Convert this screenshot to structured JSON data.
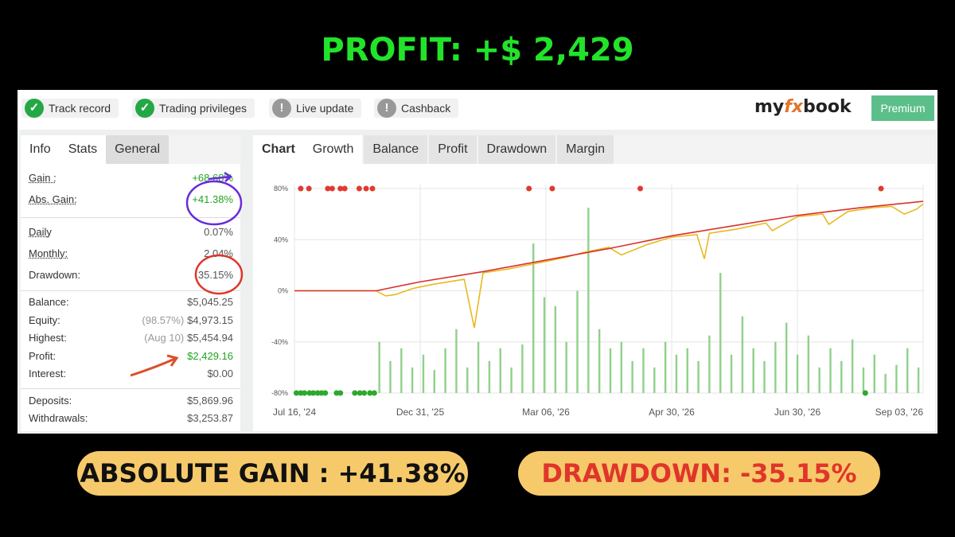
{
  "headline": "PROFIT: +$ 2,429",
  "status_badges": [
    "Track record",
    "Trading privileges",
    "Live update",
    "Cashback"
  ],
  "brand": {
    "prefix": "my",
    "accent": "fx",
    "suffix": "book"
  },
  "premium_button": "Premium",
  "stats_tabs": [
    "Info",
    "Stats",
    "General"
  ],
  "stats": [
    [
      {
        "label": "Gain :",
        "value": "+68.68%",
        "color": "#22a322"
      },
      {
        "label": "Abs. Gain:",
        "value": "+41.38%",
        "color": "#22a322"
      }
    ],
    [
      {
        "label": "Daily",
        "value": "0.07%"
      },
      {
        "label": "Monthly:",
        "value": "2.04%"
      },
      {
        "label": "Drawdown:",
        "value": "35.15%"
      }
    ],
    [
      {
        "label": "Balance:",
        "value": "$5,045.25"
      },
      {
        "label": "Equity:",
        "note": "(98.57%)",
        "value": "$4,973.15"
      },
      {
        "label": "Highest:",
        "note": "(Aug 10)",
        "value": "$5,454.94"
      },
      {
        "label": "Profit:",
        "value": "$2,429.16",
        "color": "#22a322"
      },
      {
        "label": "Interest:",
        "value": "$0.00"
      }
    ],
    [
      {
        "label": "Deposits:",
        "value": "$5,869.96"
      },
      {
        "label": "Withdrawals:",
        "value": "$3,253.87"
      }
    ]
  ],
  "chart_tabs": [
    "Chart",
    "Growth",
    "Balance",
    "Profit",
    "Drawdown",
    "Margin"
  ],
  "chart_data": {
    "type": "line",
    "grid": true,
    "xlim": [
      0,
      100
    ],
    "xticks": [
      {
        "value": 0,
        "label": "Jul 16, '24"
      },
      {
        "value": 20,
        "label": "Dec 31, '25"
      },
      {
        "value": 40,
        "label": "Mar 06, '26"
      },
      {
        "value": 60,
        "label": "Apr 30, '26"
      },
      {
        "value": 80,
        "label": "Jun 30, '26"
      },
      {
        "value": 100,
        "label": "Sep 03, '26"
      }
    ],
    "ylim": [
      -80,
      80
    ],
    "yticks": [
      {
        "value": -80,
        "label": "-80%"
      },
      {
        "value": -40,
        "label": "-40%"
      },
      {
        "value": 0,
        "label": "0%"
      },
      {
        "value": 40,
        "label": "40%"
      },
      {
        "value": 80,
        "label": "80%"
      }
    ],
    "series": [
      {
        "color": "#e8b923",
        "x": [
          0,
          13,
          14.5,
          16,
          19,
          22,
          27,
          28.6,
          30,
          34,
          38,
          40,
          43,
          46,
          50,
          52,
          56,
          60,
          64,
          65.2,
          66,
          70,
          75,
          76,
          80,
          84,
          85,
          88,
          92,
          95,
          97,
          99,
          100
        ],
        "values": [
          0,
          0,
          -4,
          -3,
          2,
          5,
          9,
          -29,
          14,
          17,
          21,
          23,
          26,
          30,
          34,
          28,
          36,
          42,
          44,
          25,
          45,
          48,
          53,
          47,
          58,
          60,
          52,
          62,
          65,
          66,
          60,
          64,
          68
        ]
      },
      {
        "color": "#d9312b",
        "x": [
          0,
          13,
          20,
          30,
          40,
          50,
          60,
          70,
          80,
          90,
          100
        ],
        "values": [
          0,
          0,
          7,
          15,
          24,
          33,
          43,
          51,
          59,
          65,
          70
        ]
      }
    ],
    "bars": {
      "color": "#8fd18a",
      "x": [
        13.5,
        15.25,
        17,
        18.75,
        20.5,
        22.25,
        24,
        25.75,
        27.5,
        29.25,
        31,
        32.75,
        34.5,
        36.25,
        38,
        39.75,
        41.5,
        43.25,
        45,
        46.75,
        48.5,
        50.25,
        52,
        53.75,
        55.5,
        57.25,
        59,
        60.75,
        62.5,
        64.25,
        66,
        67.75,
        69.5,
        71.25,
        73,
        74.75,
        76.5,
        78.25,
        80,
        81.75,
        83.5,
        85.25,
        87,
        88.75,
        90.5,
        92.25,
        94,
        95.75,
        97.5,
        99.25
      ],
      "values": [
        -40,
        -55,
        -45,
        -60,
        -50,
        -62,
        -45,
        -30,
        -60,
        -40,
        -55,
        -45,
        -60,
        -42,
        37,
        -5,
        -12,
        -40,
        0,
        65,
        -30,
        -45,
        -40,
        -55,
        -45,
        -60,
        -40,
        -50,
        -45,
        -55,
        -35,
        14,
        -50,
        -20,
        -45,
        -55,
        -40,
        -25,
        -50,
        -35,
        -60,
        -45,
        -55,
        -38,
        -60,
        -50,
        -65,
        -58,
        -45,
        -60
      ]
    },
    "markers_top": {
      "color": "#e03a2f",
      "x": [
        1,
        2.3,
        5.3,
        6,
        7.3,
        8,
        10.3,
        11.4,
        12.4,
        37.3,
        41,
        55,
        93.3
      ]
    },
    "markers_bottom": {
      "color": "#2ea82e",
      "x": [
        0.3,
        1,
        1.6,
        2.4,
        3,
        3.7,
        4.3,
        4.9,
        6.7,
        7.3,
        9.6,
        10.4,
        11.1,
        12,
        12.7,
        90.8
      ]
    }
  },
  "callouts": [
    "ABSOLUTE GAIN : +41.38%",
    "DRAWDOWN: -35.15%"
  ]
}
